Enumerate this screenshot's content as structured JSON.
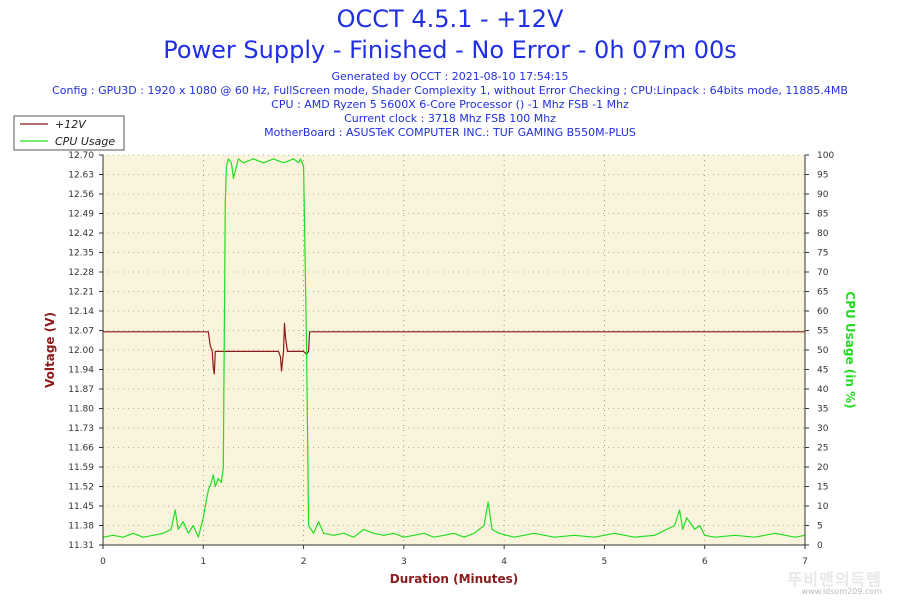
{
  "header": {
    "title_line1": "OCCT 4.5.1 - +12V",
    "title_line2": "Power Supply - Finished - No Error - 0h 07m 00s",
    "generated": "Generated by OCCT : 2021-08-10 17:54:15",
    "config": "Config : GPU3D : 1920 x 1080 @ 60 Hz, FullScreen mode, Shader Complexity 1, without Error Checking ; CPU:Linpack : 64bits mode, 11885.4MB",
    "cpu": "CPU : AMD Ryzen 5 5600X 6-Core Processor () -1 Mhz FSB -1 Mhz",
    "clock": "Current clock : 3718 Mhz FSB 100 Mhz",
    "motherboard": "MotherBoard : ASUSTeK COMPUTER INC.: TUF GAMING B550M-PLUS"
  },
  "watermark": {
    "text": "뚜비맨의득템",
    "url": "www.idsom209.com"
  },
  "colors": {
    "voltage": "#8b1a1a",
    "cpu": "#22dd22",
    "plot_bg": "#fbf4dc",
    "title": "#1f2fe6"
  },
  "chart_data": {
    "type": "line",
    "xlabel": "Duration (Minutes)",
    "ylabel": "Voltage (V)",
    "y2label": "CPU Usage (in %)",
    "xlim": [
      0,
      7
    ],
    "xticks": [
      "0",
      "1",
      "2",
      "3",
      "4",
      "5",
      "6",
      "7"
    ],
    "ylim": [
      11.31,
      12.7
    ],
    "yticks": [
      "11.31",
      "11.38",
      "11.45",
      "11.52",
      "11.59",
      "11.66",
      "11.73",
      "11.80",
      "11.87",
      "11.94",
      "12.00",
      "12.07",
      "12.14",
      "12.21",
      "12.28",
      "12.35",
      "12.42",
      "12.49",
      "12.56",
      "12.63",
      "12.70"
    ],
    "y2lim": [
      0,
      100
    ],
    "y2ticks": [
      "0",
      "5",
      "10",
      "15",
      "20",
      "25",
      "30",
      "35",
      "40",
      "45",
      "50",
      "55",
      "60",
      "65",
      "70",
      "75",
      "80",
      "85",
      "90",
      "95",
      "100"
    ],
    "grid": true,
    "legend_position": "top-left",
    "series": [
      {
        "name": "+12V",
        "axis": "left",
        "x": [
          0,
          1.03,
          1.05,
          1.07,
          1.09,
          1.1,
          1.11,
          1.12,
          1.13,
          1.15,
          1.7,
          1.75,
          1.77,
          1.78,
          1.8,
          1.81,
          1.82,
          1.84,
          1.98,
          2.0,
          2.03,
          2.05,
          2.06,
          7
        ],
        "y": [
          12.07,
          12.07,
          12.07,
          12.02,
          12.0,
          11.94,
          11.92,
          12.0,
          12.0,
          12.0,
          12.0,
          12.0,
          11.98,
          11.93,
          12.0,
          12.1,
          12.05,
          12.0,
          12.0,
          12.0,
          11.99,
          12.0,
          12.07,
          12.07
        ]
      },
      {
        "name": "CPU Usage",
        "axis": "right",
        "x": [
          0,
          0.1,
          0.2,
          0.3,
          0.4,
          0.5,
          0.6,
          0.68,
          0.72,
          0.75,
          0.8,
          0.85,
          0.9,
          0.95,
          1.0,
          1.02,
          1.05,
          1.08,
          1.1,
          1.12,
          1.15,
          1.18,
          1.2,
          1.22,
          1.23,
          1.25,
          1.28,
          1.3,
          1.35,
          1.4,
          1.5,
          1.6,
          1.7,
          1.8,
          1.9,
          1.95,
          1.97,
          2.0,
          2.03,
          2.05,
          2.1,
          2.15,
          2.2,
          2.3,
          2.4,
          2.5,
          2.6,
          2.7,
          2.8,
          2.9,
          3.0,
          3.1,
          3.2,
          3.3,
          3.4,
          3.5,
          3.6,
          3.7,
          3.8,
          3.84,
          3.88,
          3.95,
          4.1,
          4.3,
          4.5,
          4.7,
          4.9,
          5.1,
          5.3,
          5.5,
          5.7,
          5.75,
          5.78,
          5.82,
          5.9,
          5.95,
          6.0,
          6.1,
          6.3,
          6.5,
          6.7,
          6.9,
          7.0
        ],
        "y": [
          2,
          2.5,
          2,
          3,
          2,
          2.5,
          3,
          4,
          9,
          4,
          6,
          3,
          5,
          2,
          7,
          10,
          14,
          16,
          18,
          15,
          17,
          16,
          20,
          88,
          97,
          99,
          98,
          94,
          99,
          98,
          99,
          98,
          99,
          98,
          99,
          98,
          99,
          97,
          50,
          5,
          3,
          6,
          3,
          2.5,
          3,
          2,
          4,
          3,
          2.5,
          3,
          2,
          2.5,
          3,
          2,
          2.5,
          3,
          2,
          3,
          5,
          11,
          4,
          3,
          2,
          3,
          2,
          2.5,
          2,
          3,
          2,
          2.5,
          5,
          9,
          4,
          7,
          4,
          5,
          2.5,
          2,
          2.5,
          2,
          3,
          2,
          2.5
        ]
      }
    ]
  }
}
